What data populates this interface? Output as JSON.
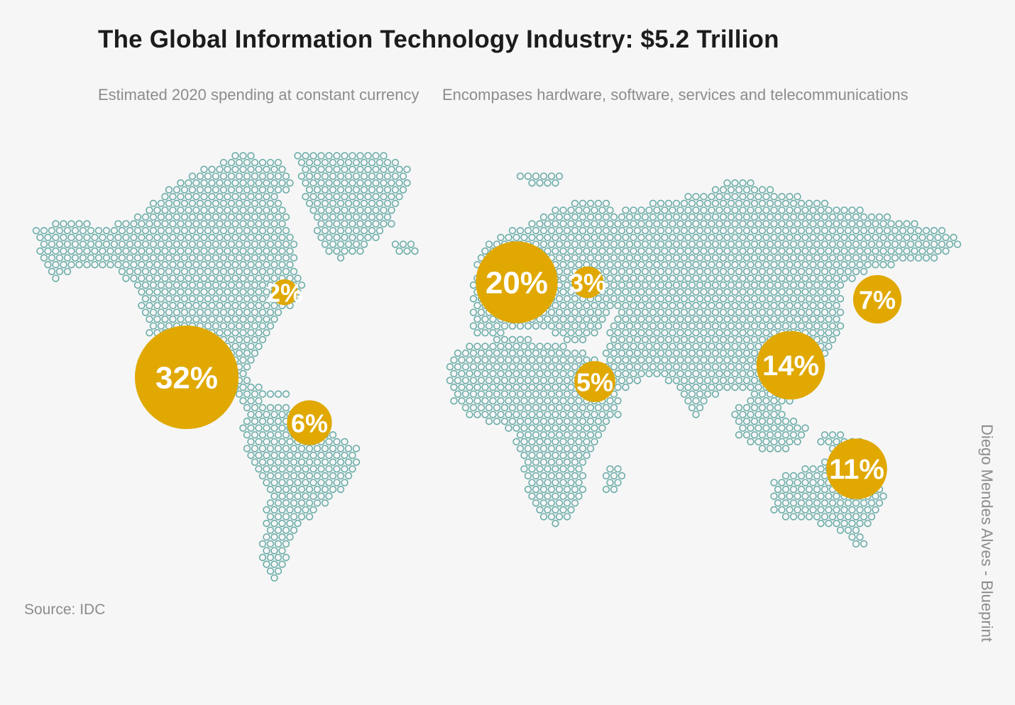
{
  "title": "The Global Information Technology Industry: $5.2 Trillion",
  "subtitle_left": "Estimated 2020 spending at constant currency",
  "subtitle_right": "Encompases hardware, software, services and telecommunications",
  "source": "Source: IDC",
  "credit": "Diego Mendes Alves - Blueprint",
  "colors": {
    "background": "#f6f6f7",
    "land_dots": "#6aaca6",
    "bubble": "#e0a800",
    "bubble_text": "#ffffff"
  },
  "regions": [
    {
      "id": "north-america",
      "share": 32,
      "label": "32%"
    },
    {
      "id": "canada",
      "share": 2,
      "label": "2%"
    },
    {
      "id": "latin-america",
      "share": 6,
      "label": "6%"
    },
    {
      "id": "western-europe",
      "share": 20,
      "label": "20%"
    },
    {
      "id": "eastern-europe",
      "share": 3,
      "label": "3%"
    },
    {
      "id": "middle-east-africa",
      "share": 5,
      "label": "5%"
    },
    {
      "id": "china",
      "share": 14,
      "label": "14%"
    },
    {
      "id": "japan",
      "share": 7,
      "label": "7%"
    },
    {
      "id": "asia-pacific",
      "share": 11,
      "label": "11%"
    }
  ]
}
